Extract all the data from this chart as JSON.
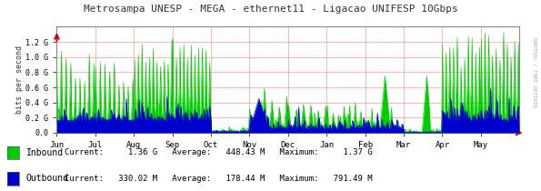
{
  "title": "Metrosampa UNESP - MEGA - ethernet11 - Ligacao UNIFESP 10Gbps",
  "ylabel": "bits per second",
  "yticks": [
    0.0,
    0.2,
    0.4,
    0.6,
    0.8,
    1.0,
    1.2
  ],
  "ytick_labels": [
    "0.0",
    "0.2 G",
    "0.4 G",
    "0.6 G",
    "0.8 G",
    "1.0 G",
    "1.2 G"
  ],
  "ylim": [
    0,
    1.4
  ],
  "xtick_labels": [
    "Jun",
    "Jul",
    "Aug",
    "Sep",
    "Oct",
    "Nov",
    "Dec",
    "Jan",
    "Feb",
    "Mar",
    "Apr",
    "May"
  ],
  "bg_color": "#ffffff",
  "plot_bg_color": "#ffffff",
  "grid_color": "#ff9999",
  "inbound_color": "#00cc00",
  "outbound_color": "#0000cc",
  "border_color": "#aaaaaa",
  "title_color": "#333333",
  "watermark": "RRDTOOL / TOBI OETIKER",
  "arrow_color": "#cc0000",
  "leg_inbound_label": "Inbound",
  "leg_outbound_label": "Outbound",
  "leg_inbound_stats": "Current:     1.36 G   Average:   448.43 M   Maximum:     1.37 G",
  "leg_outbound_stats": "Current:   330.02 M   Average:   178.44 M   Maximum:   791.49 M"
}
